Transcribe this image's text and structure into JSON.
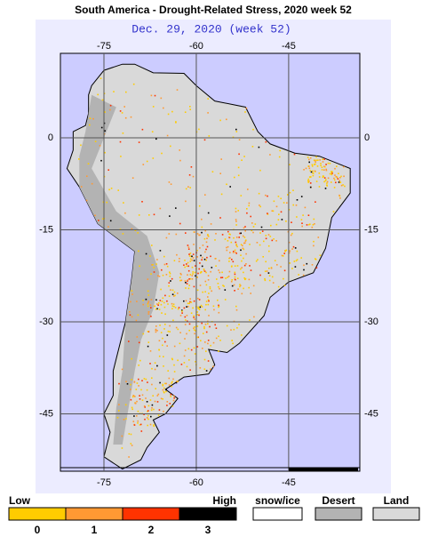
{
  "title": "South America - Drought-Related Stress, 2020 week 52",
  "subtitle": "Dec. 29, 2020 (week 52)",
  "map": {
    "lon_ticks": [
      -75,
      -60,
      -45
    ],
    "lat_ticks": [
      0,
      -15,
      -30,
      -45
    ]
  },
  "legend": {
    "low": "Low",
    "high": "High",
    "levels": [
      {
        "label": "0",
        "color": "#ffcc00"
      },
      {
        "label": "1",
        "color": "#ff9933"
      },
      {
        "label": "2",
        "color": "#ff3300"
      },
      {
        "label": "3",
        "color": "#000000"
      }
    ],
    "boxes": [
      {
        "label": "snow/ice",
        "color": "#ffffff"
      },
      {
        "label": "Desert",
        "color": "#b3b3b3"
      },
      {
        "label": "Land",
        "color": "#d9d9d9"
      }
    ]
  }
}
